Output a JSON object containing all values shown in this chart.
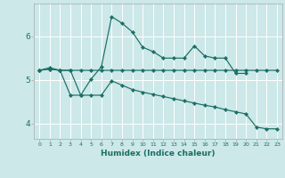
{
  "xlabel": "Humidex (Indice chaleur)",
  "bg_color": "#cce8e8",
  "grid_color": "#ffffff",
  "line_color": "#1a6e65",
  "xlim": [
    -0.5,
    23.5
  ],
  "ylim": [
    3.65,
    6.75
  ],
  "xticks": [
    0,
    1,
    2,
    3,
    4,
    5,
    6,
    7,
    8,
    9,
    10,
    11,
    12,
    13,
    14,
    15,
    16,
    17,
    18,
    19,
    20,
    21,
    22,
    23
  ],
  "yticks": [
    4,
    5,
    6
  ],
  "line1_x": [
    0,
    1,
    2,
    3,
    4,
    5,
    6,
    7,
    8,
    9,
    10,
    11,
    12,
    13,
    14,
    15,
    16,
    17,
    18,
    19,
    20
  ],
  "line1_y": [
    5.22,
    5.28,
    5.22,
    5.22,
    4.65,
    5.02,
    5.3,
    6.45,
    6.3,
    6.1,
    5.75,
    5.65,
    5.5,
    5.5,
    5.5,
    5.78,
    5.55,
    5.5,
    5.5,
    5.15,
    5.15
  ],
  "line2_x": [
    0,
    1,
    2,
    3,
    4,
    5,
    6,
    7,
    8,
    9,
    10,
    11,
    12,
    13,
    14,
    15,
    16,
    17,
    18,
    19,
    20,
    21,
    22,
    23
  ],
  "line2_y": [
    5.22,
    5.25,
    5.22,
    5.22,
    5.22,
    5.22,
    5.22,
    5.22,
    5.22,
    5.22,
    5.22,
    5.22,
    5.22,
    5.22,
    5.22,
    5.22,
    5.22,
    5.22,
    5.22,
    5.22,
    5.22,
    5.22,
    5.22,
    5.22
  ],
  "line3_x": [
    0,
    1,
    2,
    3,
    4,
    5,
    6,
    7,
    8,
    9,
    10,
    11,
    12,
    13,
    14,
    15,
    16,
    17,
    18,
    19,
    20,
    21,
    22,
    23
  ],
  "line3_y": [
    5.22,
    5.25,
    5.22,
    4.65,
    4.65,
    4.65,
    4.65,
    4.98,
    4.88,
    4.78,
    4.72,
    4.67,
    4.62,
    4.57,
    4.52,
    4.47,
    4.42,
    4.38,
    4.32,
    4.27,
    4.22,
    3.92,
    3.88,
    3.88
  ]
}
